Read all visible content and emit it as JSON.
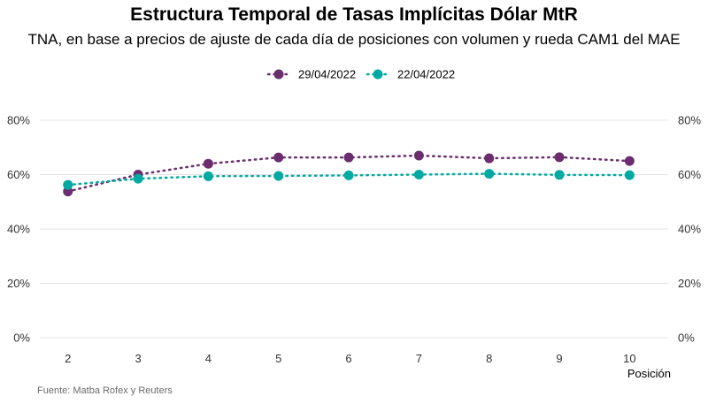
{
  "chart_data": {
    "type": "line",
    "title": "Estructura Temporal de Tasas Implícitas Dólar MtR",
    "subtitle": "TNA, en base a precios de ajuste de cada día de posiciones con volumen y rueda CAM1 del MAE",
    "xlabel": "Posición",
    "ylabel": "",
    "x": [
      2,
      3,
      4,
      5,
      6,
      7,
      8,
      9,
      10
    ],
    "x_tick_labels": [
      "2",
      "3",
      "4",
      "5",
      "6",
      "7",
      "8",
      "9",
      "10"
    ],
    "y_tick_labels": [
      "0%",
      "20%",
      "40%",
      "60%",
      "80%"
    ],
    "y_ticks": [
      0,
      20,
      40,
      60,
      80
    ],
    "ylim": [
      0,
      80
    ],
    "grid": true,
    "legend_position": "top",
    "series": [
      {
        "name": "29/04/2022",
        "color": "#6b2d6e",
        "values": [
          53.8,
          60.0,
          64.0,
          66.3,
          66.3,
          67.0,
          66.0,
          66.4,
          65.0
        ]
      },
      {
        "name": "22/04/2022",
        "color": "#00aaa3",
        "values": [
          56.2,
          58.5,
          59.4,
          59.5,
          59.7,
          60.0,
          60.3,
          59.9,
          59.8
        ]
      }
    ]
  },
  "source": "Fuente: Matba Rofex y Reuters"
}
